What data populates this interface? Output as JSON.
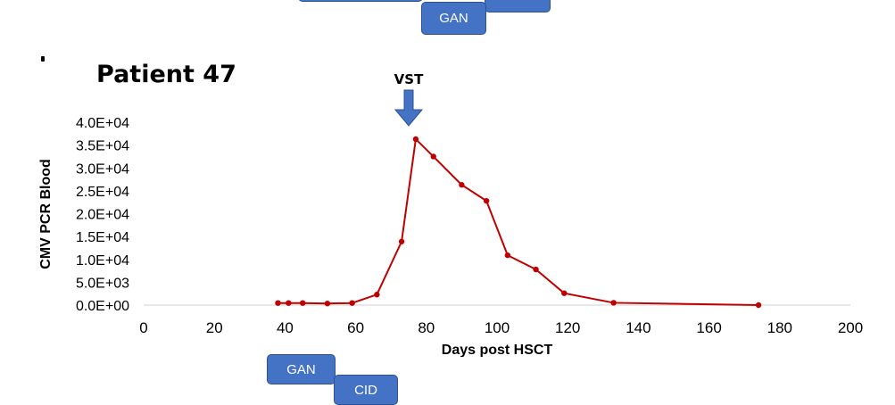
{
  "header": {
    "title": "Patient 47"
  },
  "treatments": {
    "top_gan": "GAN",
    "bottom_gan": "GAN",
    "bottom_cid": "CID"
  },
  "chart_data": {
    "type": "line",
    "annotation": "VST",
    "annotation_x": 75,
    "xlabel": "Days post HSCT",
    "ylabel": "CMV PCR Blood",
    "xlim": [
      0,
      200
    ],
    "ylim": [
      0,
      40000
    ],
    "x_ticks": [
      0,
      20,
      40,
      60,
      80,
      100,
      120,
      140,
      160,
      180,
      200
    ],
    "y_ticks": [
      0,
      5000,
      10000,
      15000,
      20000,
      25000,
      30000,
      35000,
      40000
    ],
    "y_tick_labels": [
      "0.0E+00",
      "5.0E+03",
      "1.0E+04",
      "1.5E+04",
      "2.0E+04",
      "2.5E+04",
      "3.0E+04",
      "3.5E+04",
      "4.0E+04"
    ],
    "grid": false,
    "line_color": "#c00000",
    "series": [
      {
        "x": [
          38,
          41,
          45,
          52,
          59,
          66,
          73,
          77,
          82,
          90,
          97,
          103,
          111,
          119,
          133,
          174
        ],
        "y": [
          450,
          450,
          450,
          350,
          450,
          2300,
          13900,
          36300,
          32500,
          26300,
          22800,
          10900,
          7800,
          2600,
          500,
          0
        ]
      }
    ]
  }
}
